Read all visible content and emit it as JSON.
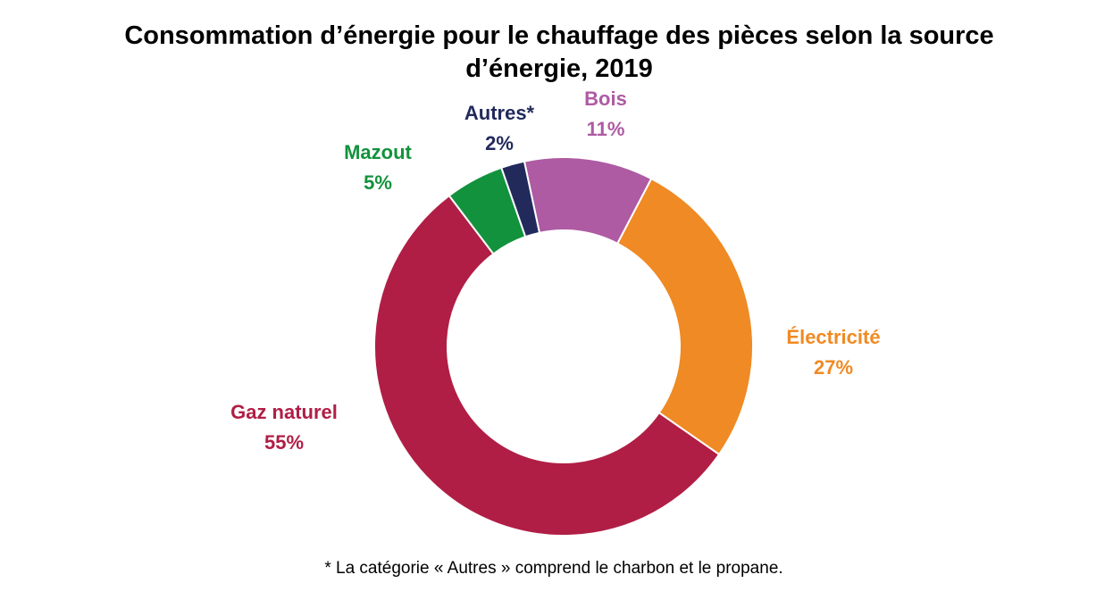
{
  "chart_data": {
    "type": "pie",
    "title_lines": [
      "Consommation d’énergie pour le chauffage des pièces selon la source",
      "d’énergie, 2019"
    ],
    "slices": [
      {
        "label": "Bois",
        "value": 11,
        "display": "11%",
        "color": "#AE5BA3"
      },
      {
        "label": "Électricité",
        "value": 27,
        "display": "27%",
        "color": "#F08A24"
      },
      {
        "label": "Gaz naturel",
        "value": 55,
        "display": "55%",
        "color": "#B01E45"
      },
      {
        "label": "Mazout",
        "value": 5,
        "display": "5%",
        "color": "#13923D"
      },
      {
        "label": "Autres*",
        "value": 2,
        "display": "2%",
        "color": "#222A5C"
      }
    ],
    "donut": true,
    "footnote": "* La catégorie « Autres » comprend le charbon et le propane."
  }
}
